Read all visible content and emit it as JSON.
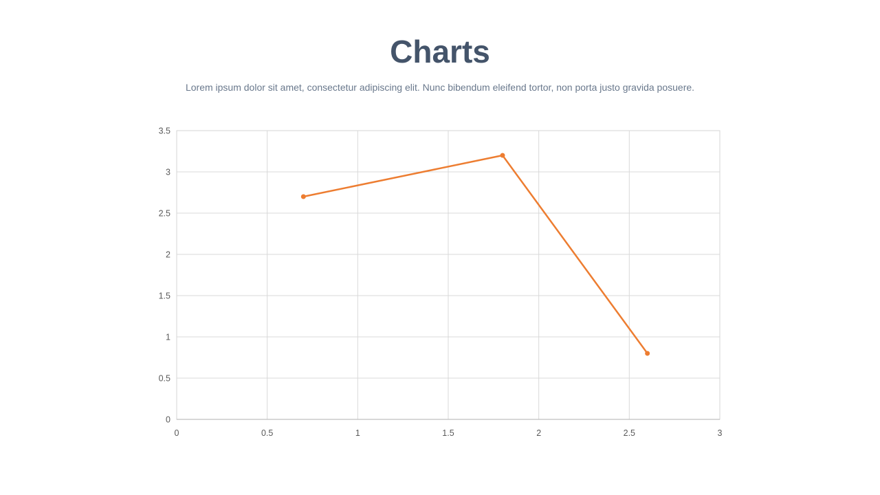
{
  "header": {
    "title": "Charts",
    "subtitle": "Lorem ipsum dolor sit amet, consectetur adipiscing elit. Nunc bibendum eleifend tortor, non porta justo gravida posuere."
  },
  "theme": {
    "background_color": "#FFFFFF",
    "title_color": "#44546A",
    "subtitle_color": "#69788C",
    "accent_orange": "#ED7D31"
  },
  "chart_data": {
    "type": "line",
    "title": "",
    "xlabel": "",
    "ylabel": "",
    "xlim": [
      0,
      3
    ],
    "ylim": [
      0,
      3.5
    ],
    "grid": true,
    "legend": "none",
    "x_tick_values": [
      0,
      0.5,
      1,
      1.5,
      2,
      2.5,
      3
    ],
    "x_tick_labels": [
      "0",
      "0.5",
      "1",
      "1.5",
      "2",
      "2.5",
      "3"
    ],
    "y_tick_values": [
      0,
      0.5,
      1,
      1.5,
      2,
      2.5,
      3,
      3.5
    ],
    "y_tick_labels": [
      "0",
      "0.5",
      "1",
      "1.5",
      "2",
      "2.5",
      "3",
      "3.5"
    ],
    "gridline_color": "#D9D9D9",
    "border_color": "#D6D6D6",
    "axis_line_color": "#BFBFBF",
    "axis_label_color": "#595959",
    "series": [
      {
        "color": "#ED7D31",
        "marker": "circle",
        "points": [
          {
            "x": 0.7,
            "y": 2.7
          },
          {
            "x": 1.8,
            "y": 3.2
          },
          {
            "x": 2.6,
            "y": 0.8
          }
        ]
      }
    ]
  }
}
